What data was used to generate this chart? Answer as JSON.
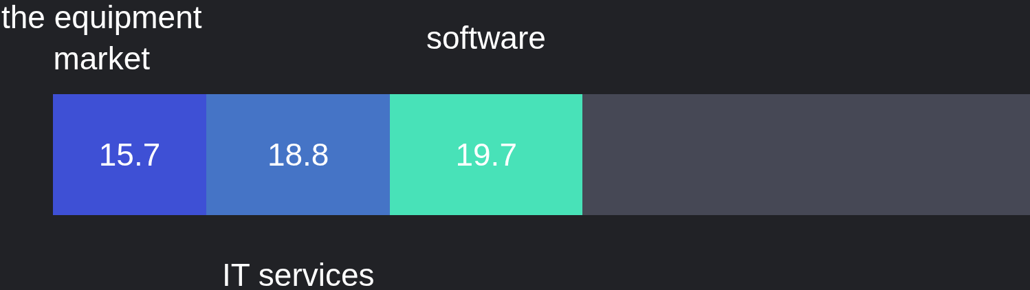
{
  "chart_data": {
    "type": "bar",
    "orientation": "horizontal",
    "stacked": true,
    "categories": [
      null
    ],
    "xlim": [
      0,
      100
    ],
    "tick_labels": false,
    "series": [
      {
        "name": "the equipment market",
        "color": "#3e50d5",
        "values": [
          15.7
        ],
        "value_labels": [
          "15.7"
        ]
      },
      {
        "name": "IT services",
        "color": "#4574c6",
        "values": [
          18.8
        ],
        "value_labels": [
          "18.8"
        ]
      },
      {
        "name": "software",
        "color": "#48e2b8",
        "values": [
          19.7
        ],
        "value_labels": [
          "19.7"
        ]
      },
      {
        "color": "#464855",
        "values": [
          45.8
        ]
      }
    ]
  }
}
